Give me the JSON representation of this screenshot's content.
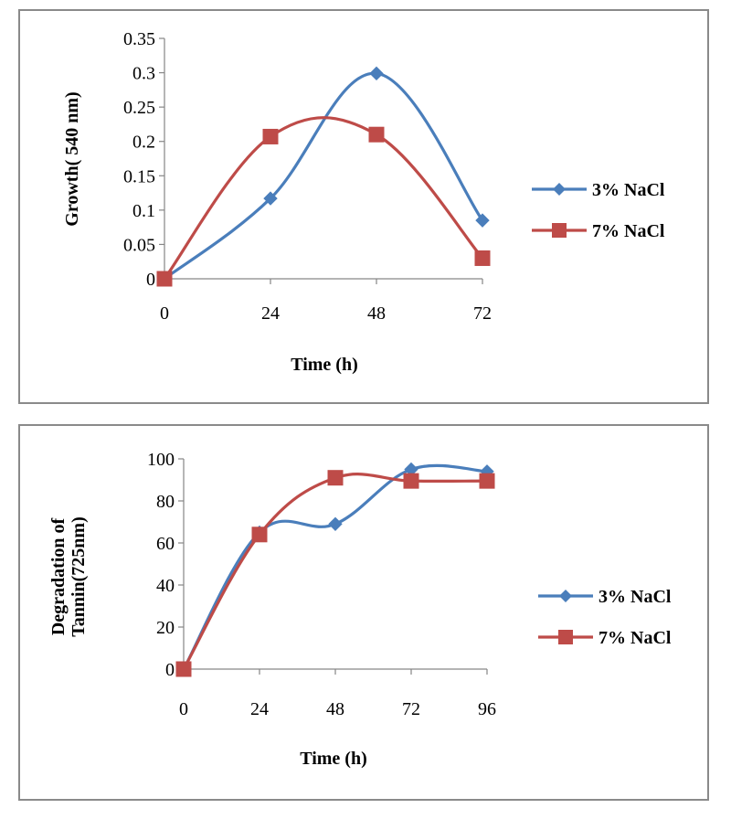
{
  "chart_data": [
    {
      "type": "line",
      "title": "",
      "xlabel": "Time (h)",
      "ylabel": "Growth( 540 nm)",
      "categories": [
        "0",
        "24",
        "48",
        "72"
      ],
      "x_ticks": [
        "0",
        "24",
        "48",
        "72"
      ],
      "y_ticks": [
        "0",
        "0.05",
        "0.1",
        "0.15",
        "0.2",
        "0.25",
        "0.3",
        "0.35"
      ],
      "ylim": [
        0,
        0.35
      ],
      "grid": false,
      "legend_position": "right",
      "smooth": true,
      "series": [
        {
          "name": "3% NaCl",
          "color": "#4a7ebb",
          "marker": "diamond",
          "values": [
            0,
            0.117,
            0.299,
            0.085
          ]
        },
        {
          "name": "7% NaCl",
          "color": "#be4b48",
          "marker": "square",
          "values": [
            0,
            0.207,
            0.21,
            0.03
          ]
        }
      ]
    },
    {
      "type": "line",
      "title": "",
      "xlabel": "Time (h)",
      "ylabel": "Degradation of Tannin(725nm)",
      "ylabel_lines": [
        "Degradation of",
        "Tannin(725nm)"
      ],
      "categories": [
        "0",
        "24",
        "48",
        "72",
        "96"
      ],
      "x_ticks": [
        "0",
        "24",
        "48",
        "72",
        "96"
      ],
      "y_ticks": [
        "0",
        "20",
        "40",
        "60",
        "80",
        "100"
      ],
      "ylim": [
        0,
        100
      ],
      "grid": false,
      "legend_position": "right",
      "smooth": true,
      "series": [
        {
          "name": "3% NaCl",
          "color": "#4a7ebb",
          "marker": "diamond",
          "values": [
            0,
            65,
            69,
            95,
            94
          ]
        },
        {
          "name": "7% NaCl",
          "color": "#be4b48",
          "marker": "square",
          "values": [
            0,
            64,
            91,
            89.5,
            89.5
          ]
        }
      ]
    }
  ]
}
